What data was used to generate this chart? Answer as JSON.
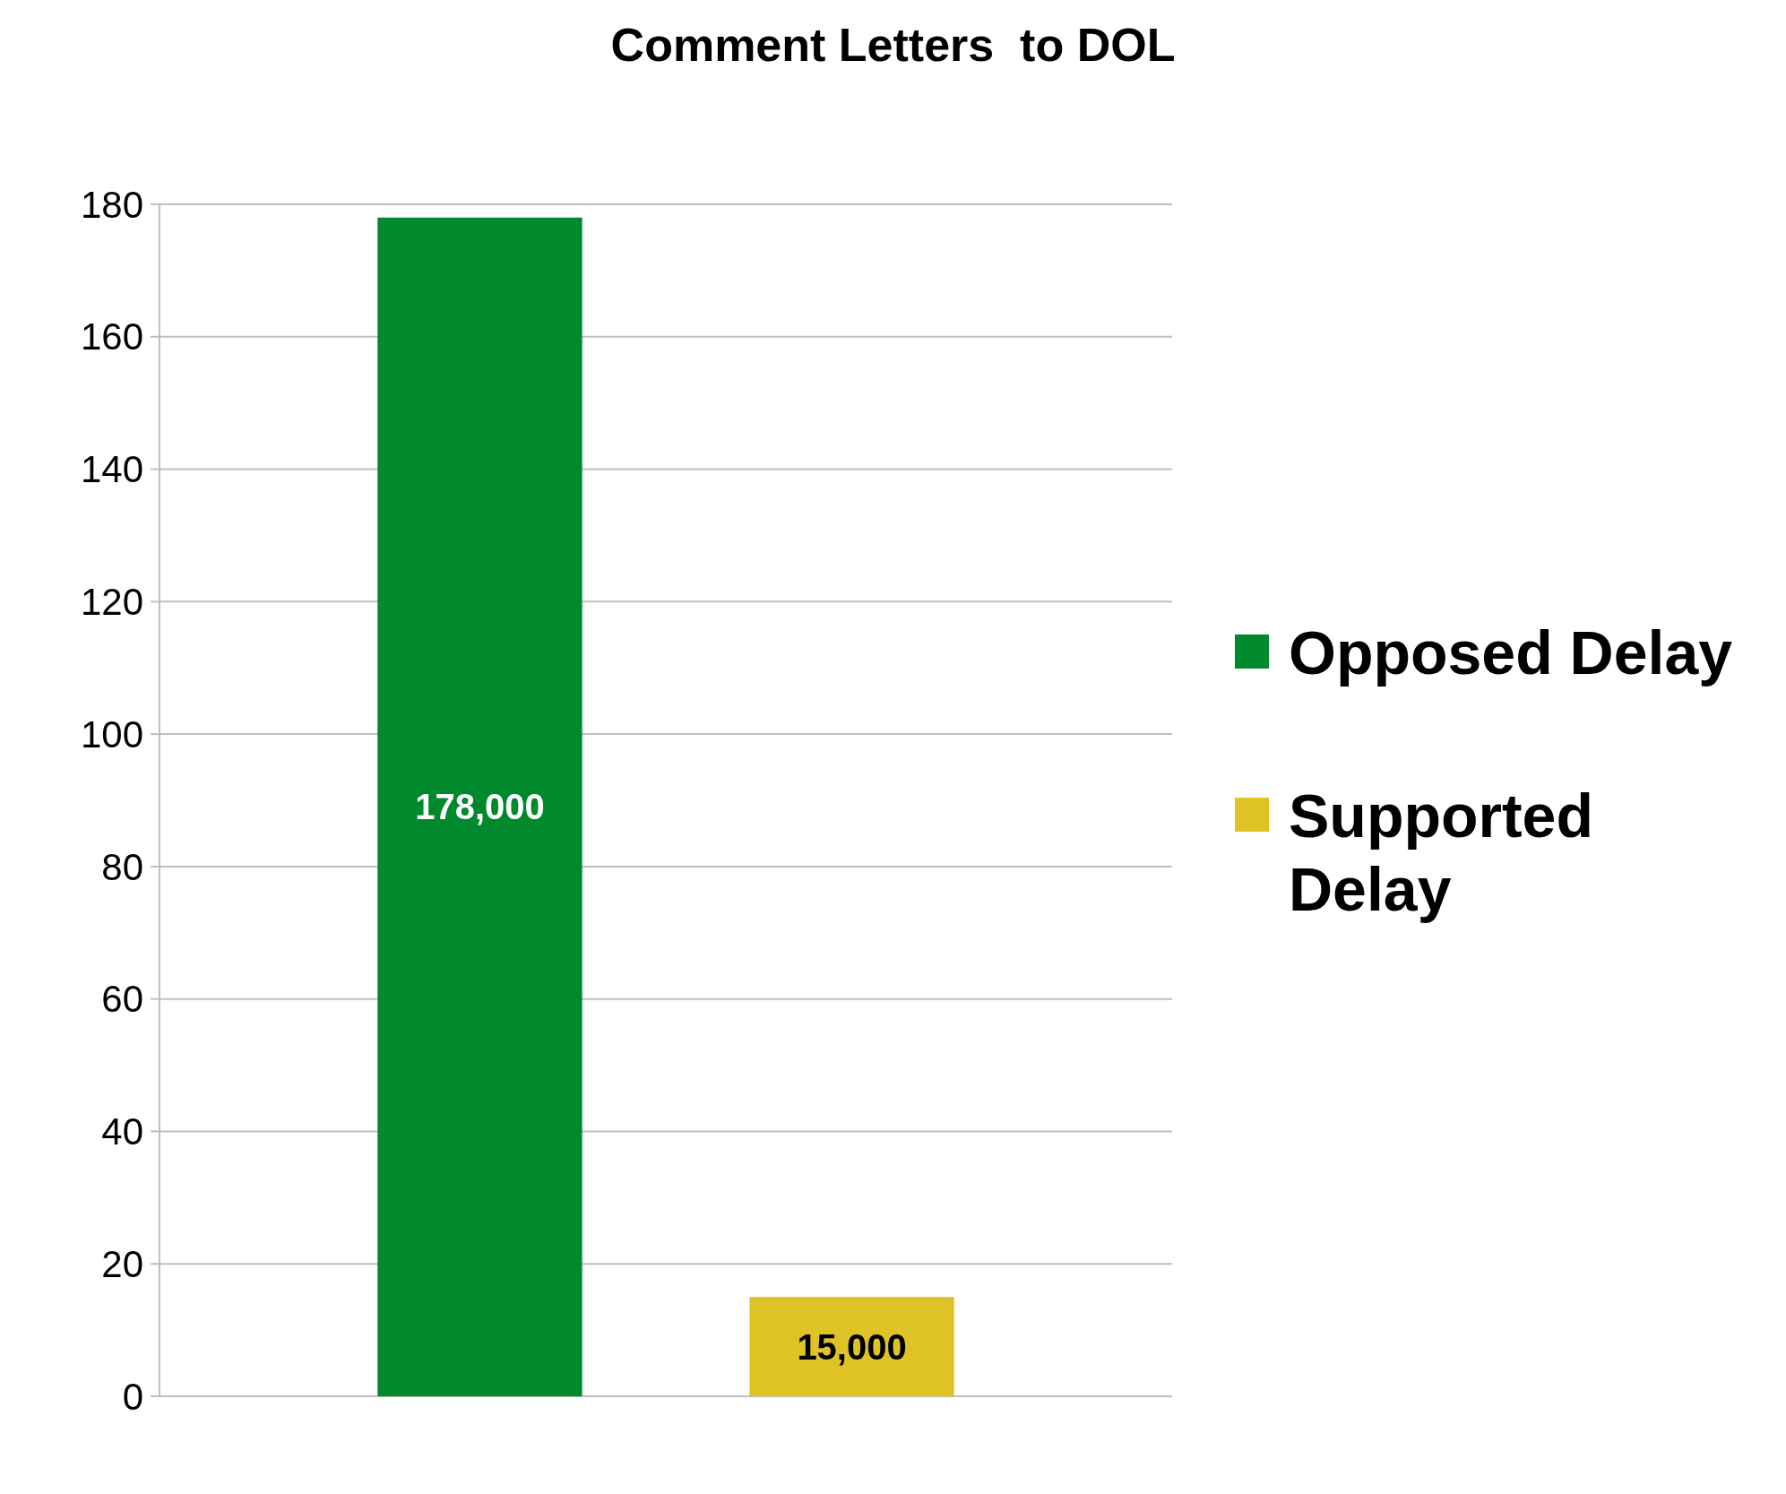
{
  "chart_data": {
    "type": "bar",
    "title": "Comment Letters  to DOL",
    "categories": [
      null
    ],
    "series": [
      {
        "name": "Opposed Delay",
        "color": "#00892c",
        "values": [
          178
        ]
      },
      {
        "name": "Supported Delay",
        "color": "#dfc226",
        "values": [
          15
        ]
      }
    ],
    "annotations": [
      "178,000",
      "15,000"
    ],
    "ylim": [
      0,
      180
    ],
    "yticks": [
      0,
      20,
      40,
      60,
      80,
      100,
      120,
      140,
      160,
      180
    ],
    "grid": "y",
    "legend": "right",
    "tick_labels": "y"
  }
}
